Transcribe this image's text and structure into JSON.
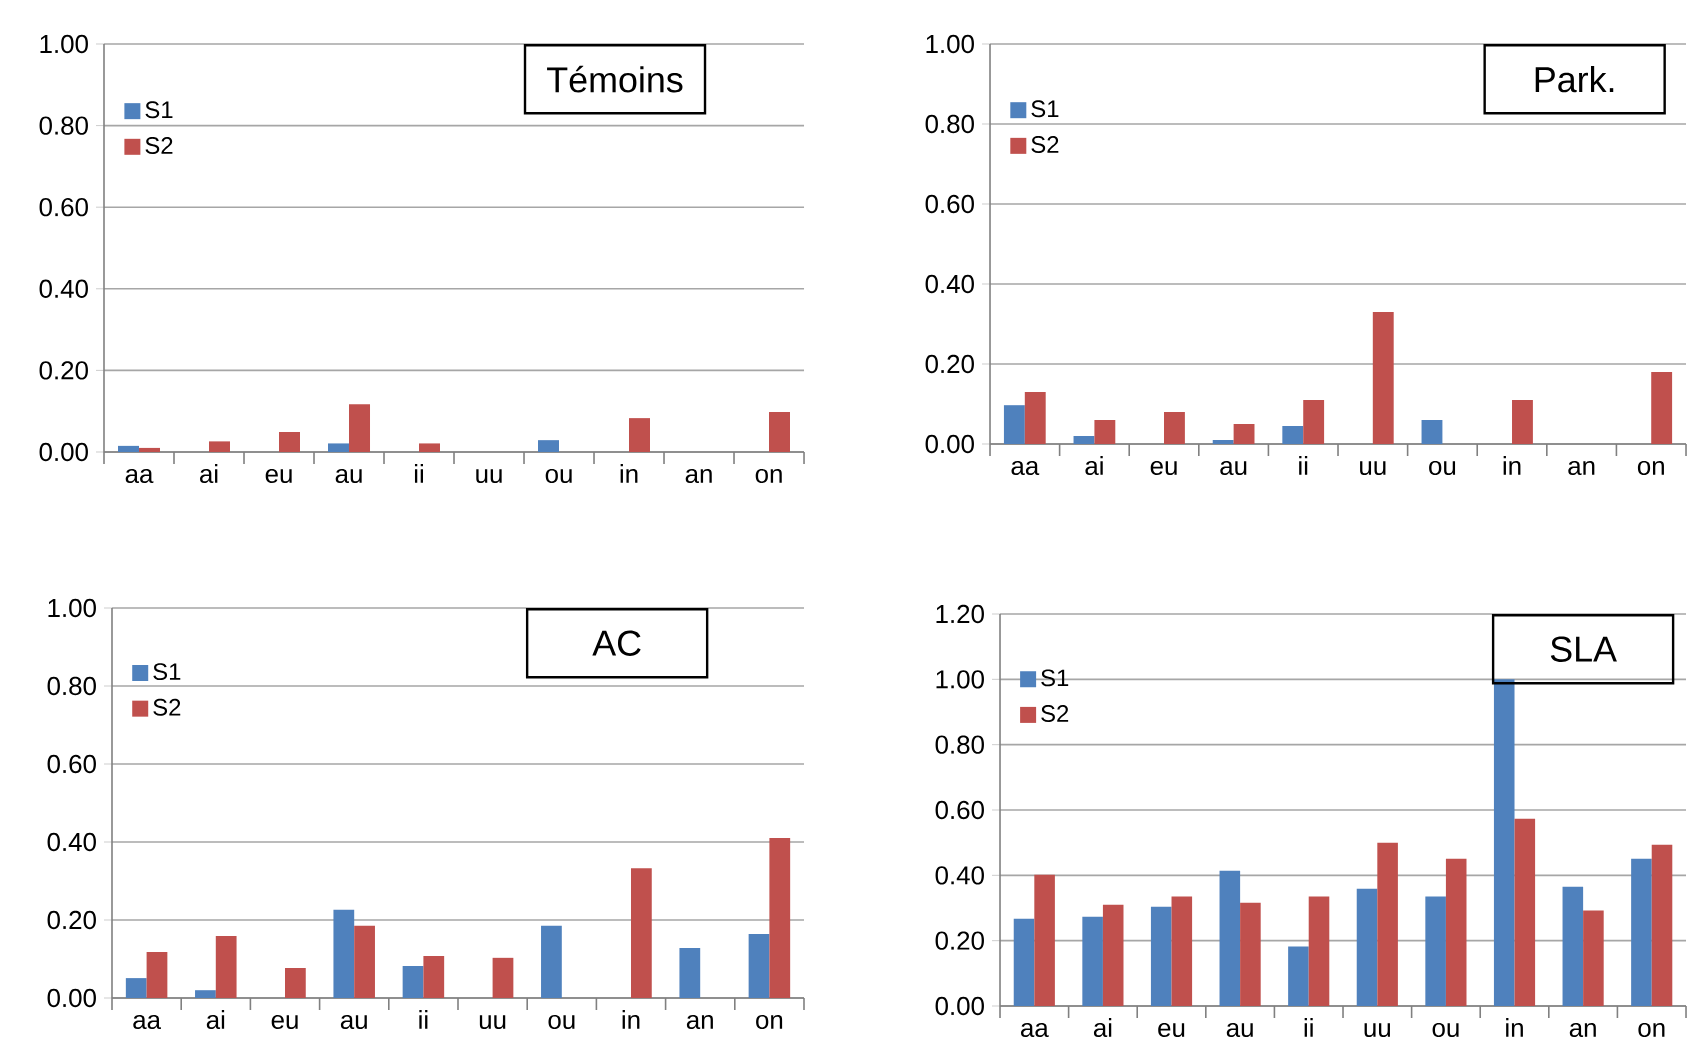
{
  "chart_data": [
    {
      "type": "bar",
      "title": "Témoins",
      "categories": [
        "aa",
        "ai",
        "eu",
        "au",
        "ii",
        "uu",
        "ou",
        "in",
        "an",
        "on"
      ],
      "series": [
        {
          "name": "S1",
          "color": "#4f81bd",
          "values": [
            0.015,
            null,
            null,
            0.021,
            null,
            null,
            0.029,
            null,
            null,
            null
          ]
        },
        {
          "name": "S2",
          "color": "#c0504d",
          "values": [
            0.01,
            0.026,
            0.049,
            0.117,
            0.021,
            null,
            null,
            0.083,
            null,
            0.098
          ]
        }
      ],
      "ylim": [
        0,
        1
      ],
      "yticks": [
        {
          "value": 0,
          "label": "0.00"
        },
        {
          "value": 0.2,
          "label": "0.20"
        },
        {
          "value": 0.4,
          "label": "0.40"
        },
        {
          "value": 0.6,
          "label": "0.60"
        },
        {
          "value": 0.8,
          "label": "0.80"
        },
        {
          "value": 1,
          "label": "1.00"
        }
      ],
      "grid": "y",
      "legend": "top left"
    },
    {
      "type": "bar",
      "title": "Park.",
      "categories": [
        "aa",
        "ai",
        "eu",
        "au",
        "ii",
        "uu",
        "ou",
        "in",
        "an",
        "on"
      ],
      "series": [
        {
          "name": "S1",
          "color": "#4f81bd",
          "values": [
            0.097,
            0.02,
            null,
            0.01,
            0.045,
            null,
            0.06,
            null,
            null,
            null
          ]
        },
        {
          "name": "S2",
          "color": "#c0504d",
          "values": [
            0.13,
            0.06,
            0.08,
            0.05,
            0.11,
            0.33,
            null,
            0.11,
            null,
            0.18
          ]
        }
      ],
      "ylim": [
        0,
        1
      ],
      "yticks": [
        {
          "value": 0,
          "label": "0.00"
        },
        {
          "value": 0.2,
          "label": "0.20"
        },
        {
          "value": 0.4,
          "label": "0.40"
        },
        {
          "value": 0.6,
          "label": "0.60"
        },
        {
          "value": 0.8,
          "label": "0.80"
        },
        {
          "value": 1,
          "label": "1.00"
        }
      ],
      "grid": "y",
      "legend": "top left"
    },
    {
      "type": "bar",
      "title": "AC",
      "categories": [
        "aa",
        "ai",
        "eu",
        "au",
        "ii",
        "uu",
        "ou",
        "in",
        "an",
        "on"
      ],
      "series": [
        {
          "name": "S1",
          "color": "#4f81bd",
          "values": [
            0.051,
            0.02,
            null,
            0.226,
            0.082,
            null,
            0.185,
            null,
            0.128,
            0.164
          ]
        },
        {
          "name": "S2",
          "color": "#c0504d",
          "values": [
            0.118,
            0.159,
            0.077,
            0.185,
            0.108,
            0.103,
            null,
            0.333,
            null,
            0.41
          ]
        }
      ],
      "ylim": [
        0,
        1
      ],
      "yticks": [
        {
          "value": 0,
          "label": "0.00"
        },
        {
          "value": 0.2,
          "label": "0.20"
        },
        {
          "value": 0.4,
          "label": "0.40"
        },
        {
          "value": 0.6,
          "label": "0.60"
        },
        {
          "value": 0.8,
          "label": "0.80"
        },
        {
          "value": 1,
          "label": "1.00"
        }
      ],
      "grid": "y",
      "legend": "top left"
    },
    {
      "type": "bar",
      "title": "SLA",
      "categories": [
        "aa",
        "ai",
        "eu",
        "au",
        "ii",
        "uu",
        "ou",
        "in",
        "an",
        "on"
      ],
      "series": [
        {
          "name": "S1",
          "color": "#4f81bd",
          "values": [
            0.267,
            0.273,
            0.304,
            0.414,
            0.182,
            0.359,
            0.335,
            1.0,
            0.365,
            0.451
          ]
        },
        {
          "name": "S2",
          "color": "#c0504d",
          "values": [
            0.402,
            0.31,
            0.335,
            0.316,
            0.335,
            0.5,
            0.451,
            0.573,
            0.292,
            0.494
          ]
        }
      ],
      "ylim": [
        0,
        1.2
      ],
      "yticks": [
        {
          "value": 0,
          "label": "0.00"
        },
        {
          "value": 0.2,
          "label": "0.20"
        },
        {
          "value": 0.4,
          "label": "0.40"
        },
        {
          "value": 0.6,
          "label": "0.60"
        },
        {
          "value": 0.8,
          "label": "0.80"
        },
        {
          "value": 1,
          "label": "1.00"
        },
        {
          "value": 1.2,
          "label": "1.20"
        }
      ],
      "grid": "y",
      "legend": "top left"
    }
  ]
}
